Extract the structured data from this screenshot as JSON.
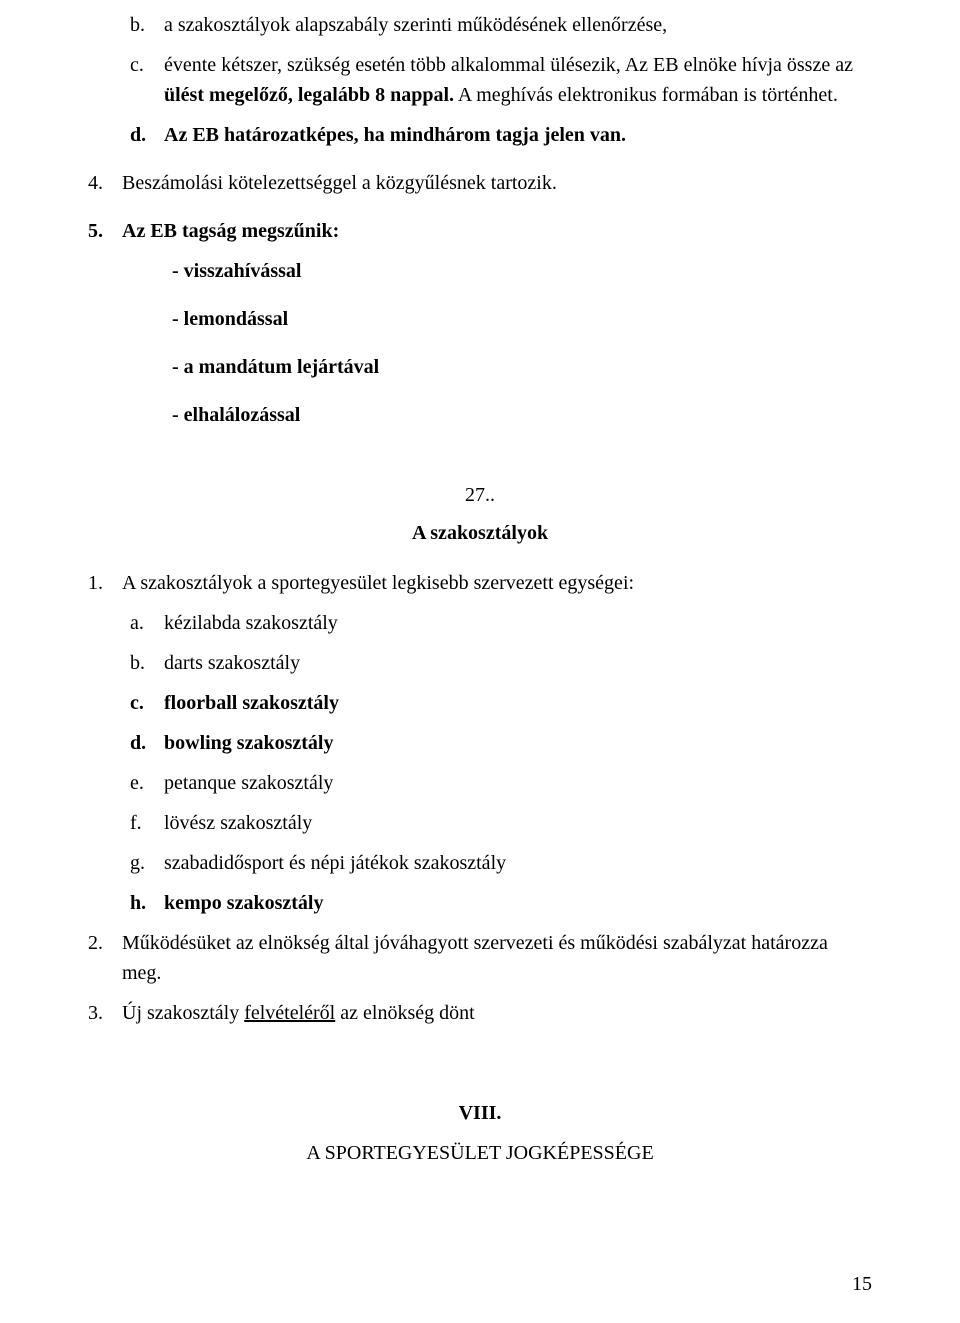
{
  "topList": {
    "b": {
      "marker": "b.",
      "text": "a szakosztályok alapszabály szerinti működésének ellenőrzése,"
    },
    "c": {
      "marker": "c.",
      "line1": "évente kétszer, szükség esetén több alkalommal ülésezik, Az EB elnöke hívja össze az",
      "line2_pre": "ülést megelőző, legalább 8 nappal.",
      "line2_post": " A meghívás elektronikus formában is történhet."
    },
    "d": {
      "marker": "d.",
      "text": "Az EB határozatképes, ha mindhárom tagja jelen van."
    }
  },
  "numbered": {
    "n4": {
      "marker": "4.",
      "text": "Beszámolási kötelezettséggel a közgyűlésnek tartozik."
    },
    "n5": {
      "marker": "5.",
      "text": "Az EB tagság megszűnik:"
    }
  },
  "dashes": {
    "d1": "- visszahívással",
    "d2": "- lemondással",
    "d3": "- a mandátum lejártával",
    "d4": "- elhalálozással"
  },
  "section27": {
    "num": "27..",
    "title": "A szakosztályok"
  },
  "s27_1": {
    "marker": "1.",
    "text": "A szakosztályok a sportegyesület legkisebb szervezett egységei:"
  },
  "sub": {
    "a": {
      "marker": "a.",
      "text": "kézilabda szakosztály"
    },
    "b": {
      "marker": "b.",
      "text": "darts szakosztály"
    },
    "c": {
      "marker": "c.",
      "text": " floorball szakosztály"
    },
    "d": {
      "marker": "d.",
      "text": "bowling szakosztály"
    },
    "e": {
      "marker": "e.",
      "text": "petanque szakosztály"
    },
    "f": {
      "marker": "f.",
      "text": "lövész szakosztály"
    },
    "g": {
      "marker": "g.",
      "text": "szabadidősport és népi játékok szakosztály"
    },
    "h": {
      "marker": "h.",
      "text": "kempo szakosztály"
    }
  },
  "s27_2": {
    "marker": "2.",
    "text": "Működésüket az elnökség által jóváhagyott szervezeti és működési szabályzat határozza meg."
  },
  "s27_3": {
    "marker": "3.",
    "pre": "Új szakosztály ",
    "underlined": "felvételéről",
    "post": " az elnökség dönt"
  },
  "roman": {
    "num": "VIII.",
    "title": "A SPORTEGYESÜLET JOGKÉPESSÉGE"
  },
  "pageNumber": "15"
}
